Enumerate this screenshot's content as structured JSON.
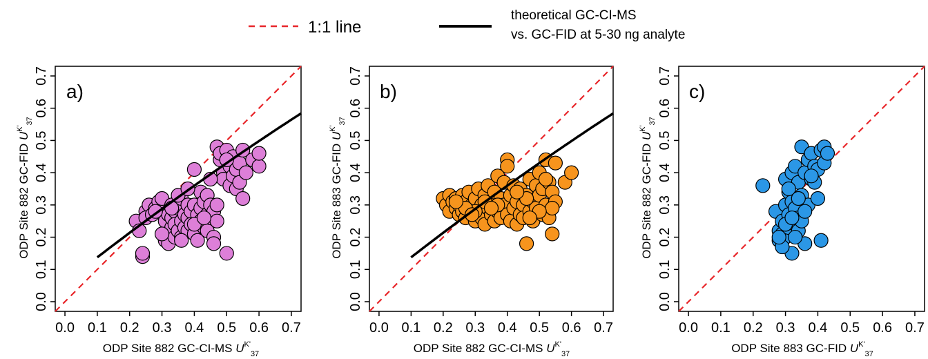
{
  "legend": {
    "placement": "top-center",
    "items": [
      {
        "label": "1:1 line",
        "color": "#e8262a",
        "style": "dashed"
      },
      {
        "label": "theoretical GC-CI-MS",
        "label2": "vs. GC-FID at 5-30 ng analyte",
        "color": "#000000",
        "style": "solid"
      }
    ]
  },
  "axis_ticks": [
    "0.0",
    "0.1",
    "0.2",
    "0.3",
    "0.4",
    "0.5",
    "0.6",
    "0.7"
  ],
  "chart_data": [
    {
      "type": "scatter",
      "panel_label": "a)",
      "xlabel": "ODP Site 882 GC-CI-MS",
      "ylabel": "ODP Site 882 GC-FID",
      "xlim": [
        -0.03,
        0.73
      ],
      "ylim": [
        -0.03,
        0.73
      ],
      "grid": false,
      "point_color": "#dd7fd8",
      "has_theory_line": true,
      "x": [
        0.22,
        0.23,
        0.24,
        0.24,
        0.25,
        0.25,
        0.26,
        0.27,
        0.28,
        0.29,
        0.3,
        0.31,
        0.31,
        0.32,
        0.32,
        0.33,
        0.33,
        0.33,
        0.34,
        0.34,
        0.34,
        0.35,
        0.35,
        0.36,
        0.36,
        0.36,
        0.37,
        0.37,
        0.38,
        0.38,
        0.38,
        0.39,
        0.39,
        0.4,
        0.4,
        0.4,
        0.41,
        0.41,
        0.42,
        0.42,
        0.42,
        0.43,
        0.43,
        0.44,
        0.44,
        0.44,
        0.45,
        0.45,
        0.46,
        0.46,
        0.47,
        0.47,
        0.48,
        0.48,
        0.49,
        0.49,
        0.5,
        0.5,
        0.51,
        0.51,
        0.52,
        0.52,
        0.53,
        0.53,
        0.54,
        0.54,
        0.55,
        0.55,
        0.56,
        0.58,
        0.6,
        0.6,
        0.47,
        0.5,
        0.46,
        0.4,
        0.35,
        0.3,
        0.28,
        0.45,
        0.43,
        0.38,
        0.33,
        0.36
      ],
      "y": [
        0.25,
        0.22,
        0.14,
        0.15,
        0.28,
        0.26,
        0.3,
        0.27,
        0.29,
        0.31,
        0.32,
        0.19,
        0.25,
        0.18,
        0.27,
        0.23,
        0.3,
        0.26,
        0.2,
        0.28,
        0.24,
        0.29,
        0.22,
        0.32,
        0.25,
        0.2,
        0.27,
        0.23,
        0.3,
        0.26,
        0.22,
        0.28,
        0.24,
        0.41,
        0.3,
        0.21,
        0.27,
        0.19,
        0.34,
        0.25,
        0.29,
        0.23,
        0.31,
        0.22,
        0.27,
        0.33,
        0.26,
        0.3,
        0.2,
        0.28,
        0.48,
        0.25,
        0.44,
        0.46,
        0.4,
        0.38,
        0.47,
        0.15,
        0.42,
        0.36,
        0.45,
        0.39,
        0.41,
        0.35,
        0.43,
        0.37,
        0.47,
        0.32,
        0.4,
        0.44,
        0.42,
        0.46,
        0.3,
        0.44,
        0.18,
        0.24,
        0.33,
        0.21,
        0.28,
        0.38,
        0.26,
        0.35,
        0.29,
        0.19
      ]
    },
    {
      "type": "scatter",
      "panel_label": "b)",
      "xlabel": "ODP Site 882 GC-CI-MS",
      "ylabel": "ODP Site 883 GC-FID",
      "xlim": [
        -0.03,
        0.73
      ],
      "ylim": [
        -0.03,
        0.73
      ],
      "grid": false,
      "point_color": "#f7941d",
      "has_theory_line": true,
      "x": [
        0.2,
        0.21,
        0.22,
        0.22,
        0.23,
        0.24,
        0.24,
        0.25,
        0.25,
        0.26,
        0.26,
        0.27,
        0.27,
        0.28,
        0.28,
        0.29,
        0.29,
        0.3,
        0.3,
        0.31,
        0.31,
        0.32,
        0.32,
        0.33,
        0.33,
        0.34,
        0.34,
        0.35,
        0.35,
        0.36,
        0.36,
        0.37,
        0.37,
        0.38,
        0.38,
        0.39,
        0.39,
        0.4,
        0.4,
        0.41,
        0.41,
        0.42,
        0.42,
        0.43,
        0.43,
        0.44,
        0.44,
        0.45,
        0.45,
        0.46,
        0.46,
        0.47,
        0.47,
        0.48,
        0.48,
        0.49,
        0.49,
        0.5,
        0.5,
        0.51,
        0.51,
        0.52,
        0.52,
        0.53,
        0.53,
        0.54,
        0.54,
        0.55,
        0.55,
        0.58,
        0.6,
        0.46,
        0.54,
        0.4,
        0.5,
        0.37,
        0.3,
        0.27,
        0.33,
        0.43,
        0.47,
        0.52,
        0.35,
        0.24,
        0.29
      ],
      "y": [
        0.32,
        0.3,
        0.33,
        0.28,
        0.31,
        0.29,
        0.32,
        0.27,
        0.3,
        0.33,
        0.28,
        0.26,
        0.31,
        0.29,
        0.34,
        0.27,
        0.3,
        0.25,
        0.32,
        0.28,
        0.35,
        0.26,
        0.3,
        0.33,
        0.24,
        0.29,
        0.36,
        0.27,
        0.31,
        0.25,
        0.34,
        0.28,
        0.39,
        0.26,
        0.32,
        0.3,
        0.37,
        0.27,
        0.44,
        0.33,
        0.25,
        0.29,
        0.36,
        0.31,
        0.24,
        0.27,
        0.35,
        0.3,
        0.26,
        0.33,
        0.18,
        0.28,
        0.38,
        0.31,
        0.25,
        0.36,
        0.29,
        0.33,
        0.4,
        0.27,
        0.35,
        0.44,
        0.3,
        0.37,
        0.26,
        0.34,
        0.21,
        0.31,
        0.43,
        0.37,
        0.4,
        0.32,
        0.29,
        0.42,
        0.28,
        0.3,
        0.28,
        0.29,
        0.31,
        0.34,
        0.26,
        0.38,
        0.29,
        0.31,
        0.27
      ]
    },
    {
      "type": "scatter",
      "panel_label": "c)",
      "xlabel": "ODP Site 883 GC-FID",
      "ylabel": "ODP Site 882 GC-FID",
      "xlim": [
        -0.03,
        0.73
      ],
      "ylim": [
        -0.03,
        0.73
      ],
      "grid": false,
      "point_color": "#2b97e6",
      "has_theory_line": false,
      "x": [
        0.23,
        0.27,
        0.28,
        0.28,
        0.29,
        0.29,
        0.3,
        0.3,
        0.3,
        0.31,
        0.31,
        0.31,
        0.32,
        0.32,
        0.32,
        0.33,
        0.33,
        0.33,
        0.34,
        0.34,
        0.34,
        0.35,
        0.35,
        0.36,
        0.36,
        0.37,
        0.37,
        0.38,
        0.38,
        0.39,
        0.39,
        0.4,
        0.4,
        0.41,
        0.41,
        0.42,
        0.42,
        0.43,
        0.35,
        0.33,
        0.31,
        0.29,
        0.36,
        0.34,
        0.3,
        0.38,
        0.32,
        0.28
      ],
      "y": [
        0.36,
        0.28,
        0.22,
        0.19,
        0.25,
        0.21,
        0.38,
        0.3,
        0.2,
        0.34,
        0.27,
        0.23,
        0.4,
        0.31,
        0.15,
        0.42,
        0.29,
        0.24,
        0.37,
        0.26,
        0.22,
        0.48,
        0.33,
        0.4,
        0.18,
        0.44,
        0.3,
        0.38,
        0.46,
        0.42,
        0.37,
        0.41,
        0.32,
        0.47,
        0.19,
        0.48,
        0.43,
        0.46,
        0.25,
        0.2,
        0.35,
        0.17,
        0.28,
        0.32,
        0.24,
        0.39,
        0.26,
        0.2
      ]
    }
  ]
}
